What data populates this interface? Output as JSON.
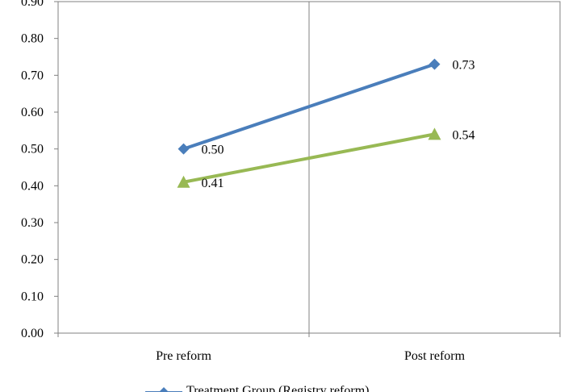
{
  "chart_data": {
    "type": "line",
    "categories": [
      "Pre reform",
      "Post reform"
    ],
    "ylim": [
      0,
      0.9
    ],
    "y_ticks": [
      "0.00",
      "0.10",
      "0.20",
      "0.30",
      "0.40",
      "0.50",
      "0.60",
      "0.70",
      "0.80",
      "0.90"
    ],
    "grid": false,
    "legend_position": "bottom",
    "series": [
      {
        "name": "Treatment Group (Registry reform)",
        "values": [
          0.5,
          0.73
        ],
        "labels": [
          "0.50",
          "0.73"
        ],
        "color": "#4a7ebb",
        "marker": "diamond"
      },
      {
        "values": [
          0.41,
          0.54
        ],
        "labels": [
          "0.41",
          "0.54"
        ],
        "color": "#98b954",
        "marker": "triangle"
      }
    ]
  }
}
